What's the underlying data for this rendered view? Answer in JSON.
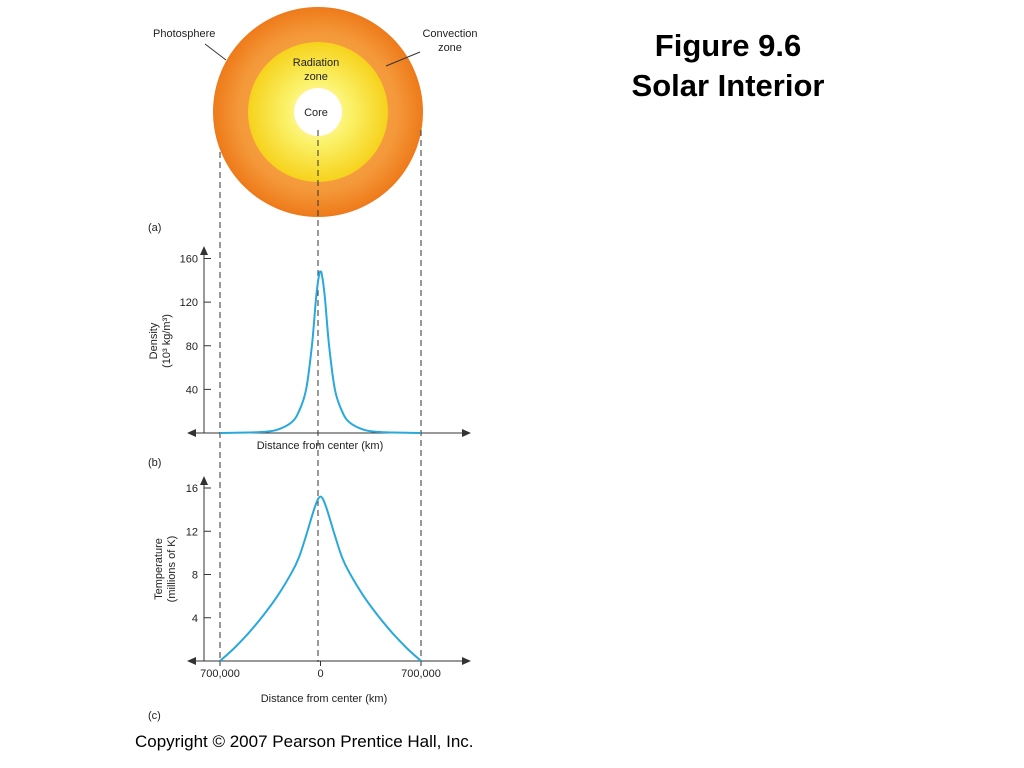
{
  "slide": {
    "title_line1": "Figure 9.6",
    "title_line2": "Solar Interior",
    "copyright": "Copyright © 2007 Pearson Prentice Hall, Inc."
  },
  "diagram": {
    "label_a": "(a)",
    "photosphere": "Photosphere",
    "convection_line1": "Convection",
    "convection_line2": "zone",
    "radiation_line1": "Radiation",
    "radiation_line2": "zone",
    "core": "Core",
    "colors": {
      "convection": "#f07c1e",
      "radiation": "#f2e21c",
      "core": "#ffffff",
      "curve": "#29a8dc"
    }
  },
  "chart_data": [
    {
      "type": "line",
      "panel_label": "(b)",
      "title": "",
      "xlabel": "Distance from center (km)",
      "ylabel_line1": "Density",
      "ylabel_line2": "(10³ kg/m³)",
      "xlim": [
        -700000,
        700000
      ],
      "ylim": [
        0,
        160
      ],
      "yticks": [
        "40",
        "80",
        "120",
        "160"
      ],
      "ytick_values": [
        40,
        80,
        120,
        160
      ],
      "series": [
        {
          "x": [
            -700000,
            -600000,
            -500000,
            -400000,
            -300000,
            -200000,
            -150000,
            -100000,
            -60000,
            -30000,
            -10000,
            0,
            10000,
            30000,
            60000,
            100000,
            150000,
            200000,
            300000,
            400000,
            500000,
            600000,
            700000
          ],
          "values": [
            0,
            0.2,
            0.5,
            1,
            3,
            10,
            20,
            40,
            80,
            125,
            145,
            148,
            145,
            125,
            80,
            40,
            20,
            10,
            3,
            1,
            0.5,
            0.2,
            0
          ]
        }
      ]
    },
    {
      "type": "line",
      "panel_label": "(c)",
      "title": "",
      "xlabel": "Distance from center (km)",
      "ylabel_line1": "Temperature",
      "ylabel_line2": "(millions of K)",
      "xlim": [
        -700000,
        700000
      ],
      "ylim": [
        0,
        16
      ],
      "yticks": [
        "4",
        "8",
        "12",
        "16"
      ],
      "ytick_values": [
        4,
        8,
        12,
        16
      ],
      "xticks": [
        "700,000",
        "0",
        "700,000"
      ],
      "xtick_values": [
        -700000,
        0,
        700000
      ],
      "series": [
        {
          "x": [
            -700000,
            -600000,
            -500000,
            -400000,
            -300000,
            -200000,
            -150000,
            -100000,
            -50000,
            -20000,
            0,
            20000,
            50000,
            100000,
            150000,
            200000,
            300000,
            400000,
            500000,
            600000,
            700000
          ],
          "values": [
            0,
            1.2,
            2.6,
            4.2,
            6.0,
            8.2,
            9.6,
            11.6,
            13.8,
            14.9,
            15.2,
            14.9,
            13.8,
            11.6,
            9.6,
            8.2,
            6.0,
            4.2,
            2.6,
            1.2,
            0
          ]
        }
      ]
    }
  ]
}
